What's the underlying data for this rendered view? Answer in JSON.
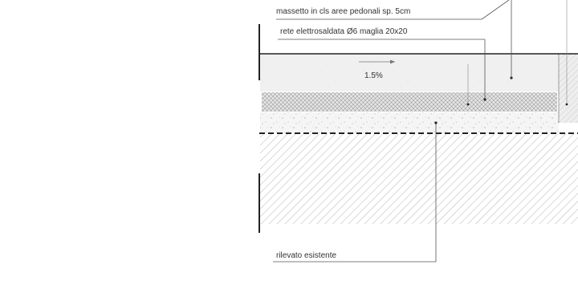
{
  "labels": {
    "massetto": "massetto in cls aree pedonali sp. 5cm",
    "rete": "rete elettrosaldata Ø6 maglia 20x20",
    "slope": "1.5%",
    "rilevato": "rilevato esistente"
  },
  "colors": {
    "line": "#222222",
    "leader": "#555555",
    "hatch": "#b5b5b5",
    "screed_fill": "#f0f0f0",
    "mesh_fill": "#e6e6e6",
    "gravel_fill": "#f5f5f5"
  }
}
